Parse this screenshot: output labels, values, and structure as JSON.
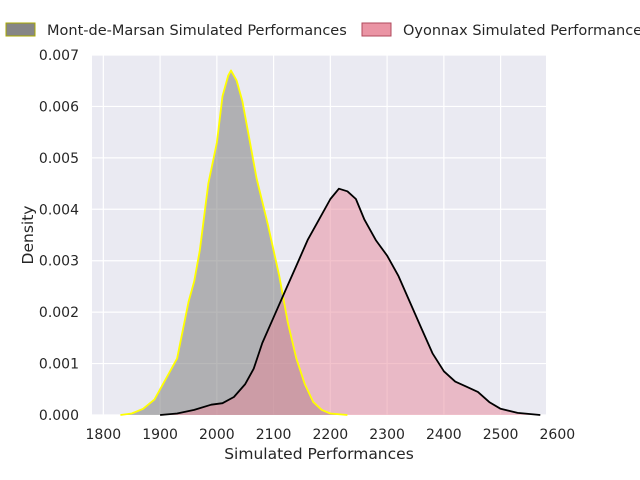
{
  "chart_data": {
    "type": "area",
    "title": "",
    "xlabel": "Simulated Performances",
    "ylabel": "Density",
    "xlim": [
      1780,
      2580
    ],
    "ylim": [
      0,
      0.007
    ],
    "xticks": [
      1800,
      1900,
      2000,
      2100,
      2200,
      2300,
      2400,
      2500,
      2600
    ],
    "xtick_labels": [
      "1800",
      "1900",
      "2000",
      "2100",
      "2200",
      "2300",
      "2400",
      "2500",
      "2600"
    ],
    "yticks": [
      0,
      0.001,
      0.002,
      0.003,
      0.004,
      0.005,
      0.006,
      0.007
    ],
    "ytick_labels": [
      "0.000",
      "0.001",
      "0.002",
      "0.003",
      "0.004",
      "0.005",
      "0.006",
      "0.007"
    ],
    "grid": true,
    "legend_position": "top",
    "series": [
      {
        "name": "Mont-de-Marsan Simulated Performances",
        "fill_color": "#808080",
        "fill_opacity": 0.55,
        "line_color": "#ffff00",
        "legend_edge_color": "#a8a800",
        "points": [
          [
            1830,
            0
          ],
          [
            1850,
            3e-05
          ],
          [
            1870,
            0.00012
          ],
          [
            1890,
            0.0003
          ],
          [
            1910,
            0.0007
          ],
          [
            1930,
            0.0011
          ],
          [
            1950,
            0.0022
          ],
          [
            1960,
            0.0026
          ],
          [
            1970,
            0.0032
          ],
          [
            1985,
            0.0045
          ],
          [
            2000,
            0.0053
          ],
          [
            2010,
            0.0062
          ],
          [
            2020,
            0.0066
          ],
          [
            2025,
            0.0067
          ],
          [
            2035,
            0.0065
          ],
          [
            2045,
            0.0061
          ],
          [
            2055,
            0.0055
          ],
          [
            2070,
            0.0046
          ],
          [
            2090,
            0.0037
          ],
          [
            2110,
            0.0027
          ],
          [
            2125,
            0.0018
          ],
          [
            2140,
            0.0011
          ],
          [
            2155,
            0.0006
          ],
          [
            2170,
            0.00025
          ],
          [
            2185,
            0.0001
          ],
          [
            2200,
            3e-05
          ],
          [
            2230,
            0
          ]
        ]
      },
      {
        "name": "Oyonnax Simulated Performances",
        "fill_color": "#e8889a",
        "fill_opacity": 0.5,
        "line_color": "#000000",
        "legend_edge_color": "#b04a5c",
        "points": [
          [
            1900,
            0
          ],
          [
            1930,
            3e-05
          ],
          [
            1960,
            0.0001
          ],
          [
            1990,
            0.0002
          ],
          [
            2010,
            0.00023
          ],
          [
            2030,
            0.00035
          ],
          [
            2050,
            0.0006
          ],
          [
            2065,
            0.0009
          ],
          [
            2080,
            0.0014
          ],
          [
            2100,
            0.0019
          ],
          [
            2120,
            0.0024
          ],
          [
            2140,
            0.0029
          ],
          [
            2160,
            0.0034
          ],
          [
            2180,
            0.0038
          ],
          [
            2200,
            0.0042
          ],
          [
            2215,
            0.0044
          ],
          [
            2230,
            0.00435
          ],
          [
            2245,
            0.0042
          ],
          [
            2260,
            0.0038
          ],
          [
            2280,
            0.0034
          ],
          [
            2300,
            0.0031
          ],
          [
            2320,
            0.0027
          ],
          [
            2340,
            0.0022
          ],
          [
            2360,
            0.0017
          ],
          [
            2380,
            0.0012
          ],
          [
            2400,
            0.00085
          ],
          [
            2420,
            0.00065
          ],
          [
            2440,
            0.00055
          ],
          [
            2460,
            0.00045
          ],
          [
            2480,
            0.00025
          ],
          [
            2500,
            0.00012
          ],
          [
            2530,
            4e-05
          ],
          [
            2570,
            0
          ]
        ]
      }
    ]
  }
}
